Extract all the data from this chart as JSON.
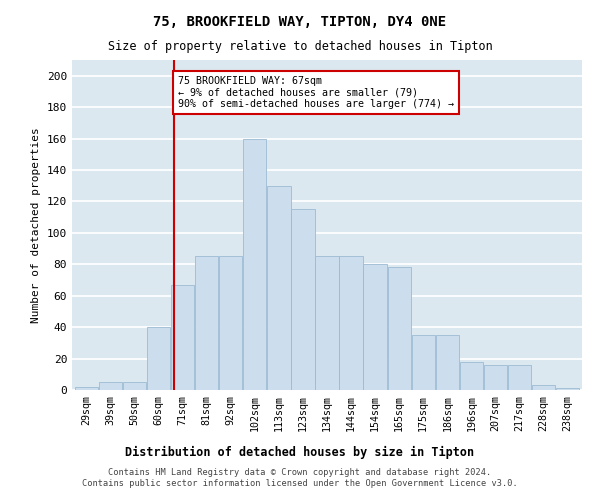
{
  "title": "75, BROOKFIELD WAY, TIPTON, DY4 0NE",
  "subtitle": "Size of property relative to detached houses in Tipton",
  "xlabel": "Distribution of detached houses by size in Tipton",
  "ylabel": "Number of detached properties",
  "bar_color": "#ccdded",
  "bar_edgecolor": "#9bbbd4",
  "background_color": "#dce8f0",
  "annotation_line_color": "#cc0000",
  "annotation_box_text": "75 BROOKFIELD WAY: 67sqm\n← 9% of detached houses are smaller (79)\n90% of semi-detached houses are larger (774) →",
  "categories": [
    "29sqm",
    "39sqm",
    "50sqm",
    "60sqm",
    "71sqm",
    "81sqm",
    "92sqm",
    "102sqm",
    "113sqm",
    "123sqm",
    "134sqm",
    "144sqm",
    "154sqm",
    "165sqm",
    "175sqm",
    "186sqm",
    "196sqm",
    "207sqm",
    "217sqm",
    "228sqm",
    "238sqm"
  ],
  "bar_heights": [
    2,
    5,
    5,
    40,
    67,
    85,
    85,
    160,
    130,
    115,
    85,
    85,
    80,
    78,
    35,
    35,
    18,
    16,
    16,
    3,
    1
  ],
  "ylim": [
    0,
    210
  ],
  "yticks": [
    0,
    20,
    40,
    60,
    80,
    100,
    120,
    140,
    160,
    180,
    200
  ],
  "footer_line1": "Contains HM Land Registry data © Crown copyright and database right 2024.",
  "footer_line2": "Contains public sector information licensed under the Open Government Licence v3.0."
}
